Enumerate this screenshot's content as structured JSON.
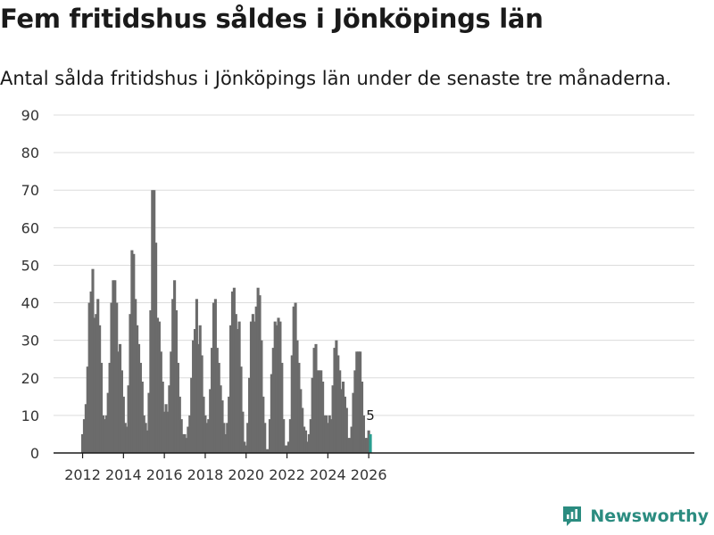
{
  "header": {
    "title": "Fem fritidshus såldes i Jönköpings län",
    "subtitle": "Antal sålda fritidshus i Jönköpings län under de senaste tre månaderna."
  },
  "brand": {
    "name": "Newsworthy",
    "icon": "newsworthy-logo-icon"
  },
  "colors": {
    "bar": "#6b6b6b",
    "highlight": "#2a9d8f",
    "grid": "#dcdcdc",
    "brand": "#2b8c80"
  },
  "chart_data": {
    "type": "bar",
    "title": "Fem fritidshus såldes i Jönköpings län",
    "xlabel": "",
    "ylabel": "",
    "ylim": [
      0,
      90
    ],
    "yticks": [
      0,
      10,
      20,
      30,
      40,
      50,
      60,
      70,
      80,
      90
    ],
    "xticks": [
      "2012",
      "2014",
      "2016",
      "2018",
      "2020",
      "2022",
      "2024",
      "2026"
    ],
    "x_start": "2012-01",
    "frequency": "monthly",
    "highlight_label": "5",
    "series": [
      {
        "name": "Sålda fritidshus",
        "start": "2012-01",
        "values": [
          5,
          9,
          13,
          23,
          40,
          43,
          49,
          36,
          37,
          41,
          34,
          24,
          10,
          9,
          10,
          16,
          24,
          40,
          46,
          46,
          40,
          27,
          29,
          22,
          15,
          8,
          7,
          18,
          37,
          54,
          53,
          41,
          34,
          29,
          24,
          19,
          10,
          8,
          6,
          16,
          38,
          70,
          70,
          56,
          36,
          35,
          27,
          19,
          11,
          13,
          11,
          18,
          27,
          41,
          46,
          38,
          24,
          15,
          9,
          5,
          5,
          4,
          7,
          10,
          20,
          30,
          33,
          41,
          29,
          34,
          26,
          15,
          10,
          8,
          9,
          17,
          28,
          40,
          41,
          28,
          24,
          18,
          14,
          8,
          5,
          8,
          15,
          34,
          43,
          44,
          37,
          33,
          35,
          23,
          11,
          3,
          2,
          8,
          20,
          35,
          37,
          35,
          39,
          44,
          42,
          30,
          15,
          8,
          1,
          1,
          9,
          21,
          28,
          35,
          34,
          36,
          35,
          24,
          9,
          2,
          2,
          3,
          9,
          26,
          39,
          40,
          30,
          24,
          17,
          12,
          7,
          6,
          3,
          5,
          9,
          20,
          28,
          29,
          22,
          22,
          22,
          19,
          10,
          10,
          8,
          10,
          9,
          18,
          28,
          30,
          26,
          22,
          17,
          19,
          15,
          12,
          4,
          4,
          7,
          16,
          22,
          27,
          27,
          27,
          19,
          10,
          4,
          4,
          6,
          5
        ]
      }
    ]
  }
}
